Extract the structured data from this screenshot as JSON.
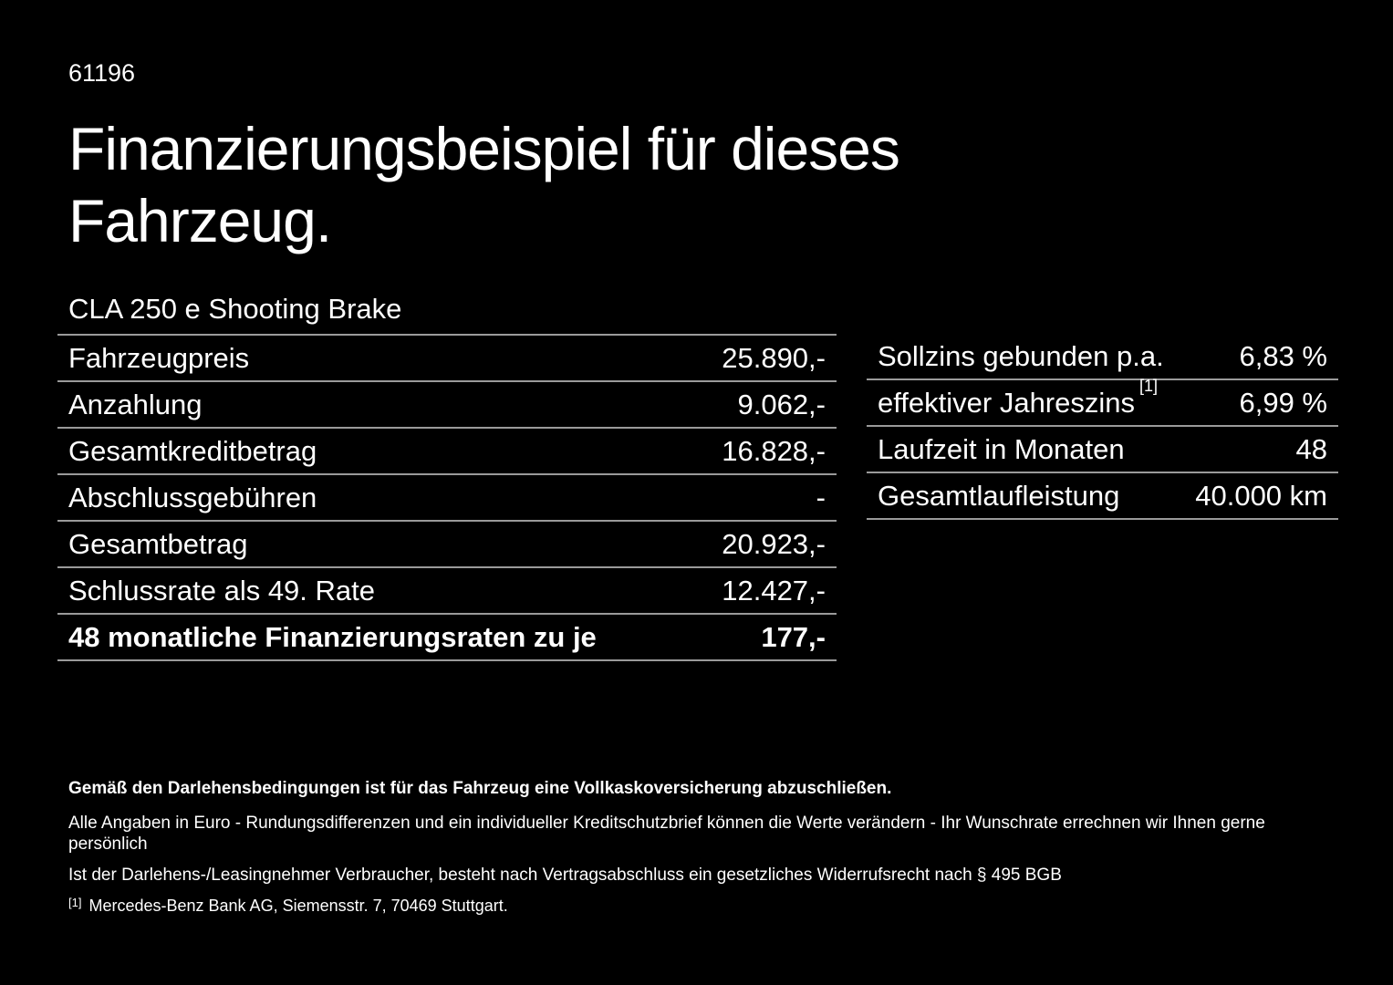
{
  "page": {
    "doc_number": "61196",
    "title": "Finanzierungsbeispiel für dieses Fahrzeug.",
    "model": "CLA 250 e Shooting Brake"
  },
  "left_table": {
    "rows": [
      {
        "label": "Fahrzeugpreis",
        "value": "25.890,-"
      },
      {
        "label": "Anzahlung",
        "value": "9.062,-"
      },
      {
        "label": "Gesamtkreditbetrag",
        "value": "16.828,-"
      },
      {
        "label": "Abschlussgebühren",
        "value": "-"
      },
      {
        "label": "Gesamtbetrag",
        "value": "20.923,-"
      },
      {
        "label": "Schlussrate als 49. Rate",
        "value": "12.427,-"
      },
      {
        "label": "48 monatliche Finanzierungsraten zu je",
        "value": "177,-"
      }
    ]
  },
  "right_table": {
    "rows": [
      {
        "label": "Sollzins gebunden p.a.",
        "value": "6,83 %"
      },
      {
        "label": "effektiver Jahreszins",
        "sup": "[1]",
        "value": "6,99 %"
      },
      {
        "label": "Laufzeit in Monaten",
        "value": "48"
      },
      {
        "label": "Gesamtlaufleistung",
        "value": "40.000 km"
      }
    ]
  },
  "footer": {
    "note_bold": "Gemäß den Darlehensbedingungen ist für das Fahrzeug eine Vollkaskoversicherung abzuschließen.",
    "note_1": "Alle Angaben in Euro - Rundungsdifferenzen und ein individueller Kreditschutzbrief können die Werte verändern - Ihr Wunschrate errechnen wir Ihnen gerne persönlich",
    "note_2": "Ist der Darlehens-/Leasingnehmer Verbraucher, besteht nach Vertragsabschluss ein gesetzliches Widerrufsrecht nach § 495 BGB",
    "footnote_marker": "[1]",
    "footnote_text": "Mercedes-Benz Bank AG, Siemensstr. 7, 70469 Stuttgart."
  },
  "colors": {
    "background": "#000000",
    "text": "#ffffff",
    "divider": "#9a9a9a"
  }
}
